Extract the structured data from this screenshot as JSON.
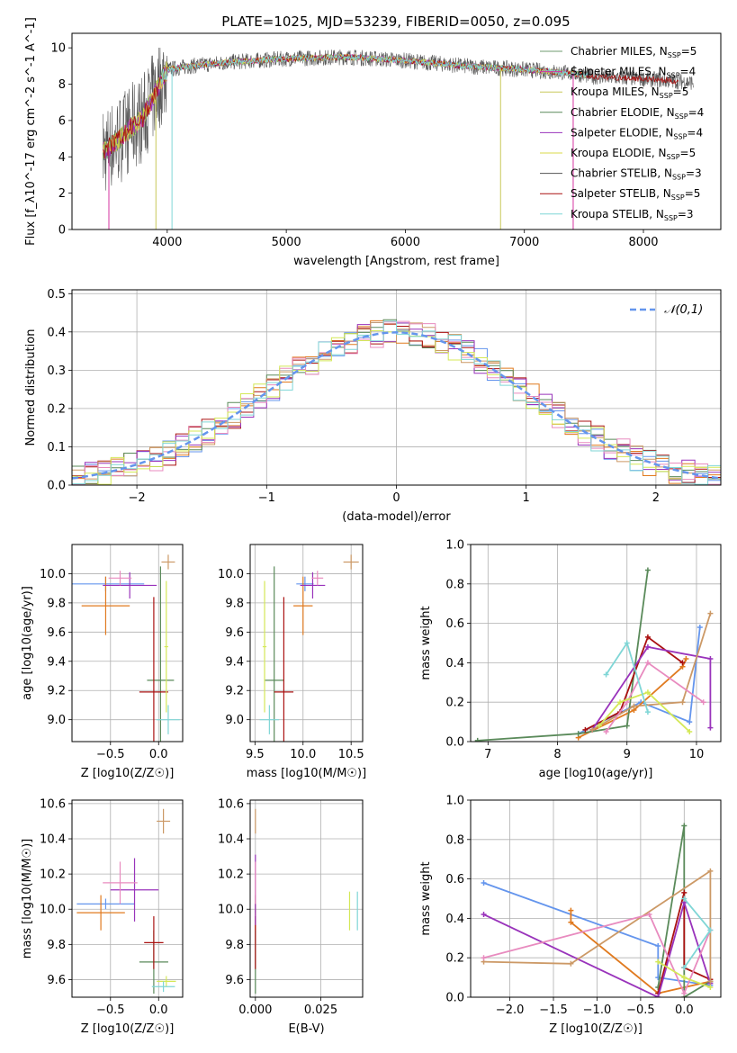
{
  "figure_title": "PLATE=1025, MJD=53239, FIBERID=0050, z=0.095",
  "colors": [
    "#6f9b6f",
    "#d633a0",
    "#c8c85a",
    "#5a8a5a",
    "#9933bb",
    "#dada4a",
    "#555555",
    "#aa1111",
    "#7fd6d6"
  ],
  "hist_colors": [
    "#6495ed",
    "#e07a1f",
    "#5a8a5a",
    "#aa1111",
    "#9933bb",
    "#cc9966",
    "#e88bbf",
    "#d4e857",
    "#7fd6d6"
  ],
  "chart_data": [
    {
      "type": "line",
      "title": "PLATE=1025, MJD=53239, FIBERID=0050, z=0.095",
      "xlabel": "wavelength [Angstrom, rest frame]",
      "ylabel": "Flux [f_λ10^-17 erg cm^-2 s^-1 A^-1]",
      "xlim": [
        3200,
        8650
      ],
      "ylim": [
        0,
        10.8
      ],
      "xticks": [
        "4000",
        "5000",
        "6000",
        "7000",
        "8000"
      ],
      "yticks": [
        "0",
        "2",
        "4",
        "6",
        "8",
        "10"
      ],
      "legend": "upper-right",
      "series": [
        {
          "name": "Chabrier MILES, N_SSP=5"
        },
        {
          "name": "Salpeter MILES, N_SSP=4"
        },
        {
          "name": "Kroupa MILES, N_SSP=5"
        },
        {
          "name": "Chabrier ELODIE, N_SSP=4"
        },
        {
          "name": "Salpeter ELODIE, N_SSP=4"
        },
        {
          "name": "Kroupa ELODIE, N_SSP=5"
        },
        {
          "name": "Chabrier STELIB, N_SSP=3"
        },
        {
          "name": "Salpeter STELIB, N_SSP=5"
        },
        {
          "name": "Kroupa STELIB, N_SSP=3"
        }
      ],
      "continuum": {
        "x": [
          3450,
          3600,
          3800,
          4000,
          4200,
          4500,
          5000,
          5500,
          6000,
          6500,
          7000,
          7400,
          7600,
          8000,
          8400
        ],
        "y": [
          4.2,
          5.0,
          6.2,
          8.8,
          9.0,
          9.2,
          9.4,
          9.5,
          9.3,
          9.0,
          8.8,
          8.6,
          8.4,
          8.3,
          8.1
        ]
      }
    },
    {
      "type": "bar",
      "xlabel": "(data-model)/error",
      "ylabel": "Normed distribution",
      "xlim": [
        -2.5,
        2.5
      ],
      "ylim": [
        0,
        0.51
      ],
      "xticks": [
        "−2",
        "−1",
        "0",
        "1",
        "2"
      ],
      "yticks": [
        "0.0",
        "0.1",
        "0.2",
        "0.3",
        "0.4",
        "0.5"
      ],
      "legend": "upper-right",
      "reference": {
        "name": "𝒩(0,1)"
      },
      "bin_width": 0.1
    },
    {
      "type": "scatter",
      "xlabel": "Z [log10(Z/Z☉)]",
      "ylabel": "age [log10(age/yr)]",
      "xlim": [
        -0.9,
        0.25
      ],
      "ylim": [
        8.85,
        10.2
      ],
      "xticks": [
        "−0.5",
        "0.0"
      ],
      "yticks": [
        "9.0",
        "9.2",
        "9.4",
        "9.6",
        "9.8",
        "10.0"
      ],
      "points": [
        {
          "x": -0.55,
          "y": 9.93,
          "ex": 0.4,
          "ey": 0.05
        },
        {
          "x": -0.55,
          "y": 9.78,
          "ex": 0.25,
          "ey": 0.2
        },
        {
          "x": 0.02,
          "y": 9.27,
          "ex": 0.14,
          "ey": 0.78
        },
        {
          "x": -0.05,
          "y": 9.19,
          "ex": 0.15,
          "ey": 0.65
        },
        {
          "x": -0.3,
          "y": 9.92,
          "ex": 0.28,
          "ey": 0.09
        },
        {
          "x": 0.1,
          "y": 10.08,
          "ex": 0.07,
          "ey": 0.05
        },
        {
          "x": -0.4,
          "y": 9.97,
          "ex": 0.12,
          "ey": 0.05
        },
        {
          "x": 0.08,
          "y": 9.5,
          "ex": 0.02,
          "ey": 0.45
        },
        {
          "x": 0.1,
          "y": 9.0,
          "ex": 0.12,
          "ey": 0.1
        }
      ]
    },
    {
      "type": "scatter",
      "xlabel": "mass [log10(M/M☉)]",
      "ylabel": "",
      "xlim": [
        9.45,
        10.62
      ],
      "ylim": [
        8.85,
        10.2
      ],
      "xticks": [
        "9.5",
        "10.0",
        "10.5"
      ],
      "yticks": [
        "9.0",
        "9.2",
        "9.4",
        "9.6",
        "9.8",
        "10.0"
      ],
      "points": [
        {
          "x": 10.02,
          "y": 9.93,
          "ex": 0.09,
          "ey": 0.05
        },
        {
          "x": 10.0,
          "y": 9.78,
          "ex": 0.1,
          "ey": 0.2
        },
        {
          "x": 9.7,
          "y": 9.27,
          "ex": 0.1,
          "ey": 0.78
        },
        {
          "x": 9.8,
          "y": 9.19,
          "ex": 0.1,
          "ey": 0.65
        },
        {
          "x": 10.1,
          "y": 9.92,
          "ex": 0.13,
          "ey": 0.09
        },
        {
          "x": 10.5,
          "y": 10.08,
          "ex": 0.08,
          "ey": 0.05
        },
        {
          "x": 10.15,
          "y": 9.97,
          "ex": 0.06,
          "ey": 0.05
        },
        {
          "x": 9.6,
          "y": 9.5,
          "ex": 0.02,
          "ey": 0.45
        },
        {
          "x": 9.65,
          "y": 9.0,
          "ex": 0.1,
          "ey": 0.1
        }
      ]
    },
    {
      "type": "line",
      "xlabel": "age [log10(age/yr)]",
      "ylabel": "mass weight",
      "xlim": [
        6.75,
        10.35
      ],
      "ylim": [
        0,
        1.0
      ],
      "xticks": [
        "7",
        "8",
        "9",
        "10"
      ],
      "yticks": [
        "0.0",
        "0.2",
        "0.4",
        "0.6",
        "0.8",
        "1.0"
      ],
      "series": [
        {
          "x": [
            8.3,
            9.2,
            9.9,
            10.05
          ],
          "y": [
            0.04,
            0.2,
            0.1,
            0.58
          ]
        },
        {
          "x": [
            8.3,
            9.1,
            9.8,
            9.85
          ],
          "y": [
            0.02,
            0.16,
            0.38,
            0.42
          ]
        },
        {
          "x": [
            6.85,
            8.3,
            9.0,
            9.3
          ],
          "y": [
            0.005,
            0.04,
            0.08,
            0.87
          ]
        },
        {
          "x": [
            8.4,
            8.9,
            9.3,
            9.8
          ],
          "y": [
            0.06,
            0.15,
            0.53,
            0.4
          ]
        },
        {
          "x": [
            8.5,
            9.3,
            10.2,
            10.2
          ],
          "y": [
            0.06,
            0.48,
            0.42,
            0.07
          ]
        },
        {
          "x": [
            8.5,
            9.1,
            9.8,
            10.2
          ],
          "y": [
            0.06,
            0.18,
            0.2,
            0.65
          ]
        },
        {
          "x": [
            8.7,
            9.0,
            9.3,
            10.1
          ],
          "y": [
            0.05,
            0.2,
            0.4,
            0.2
          ]
        },
        {
          "x": [
            8.6,
            8.9,
            9.3,
            9.9
          ],
          "y": [
            0.08,
            0.2,
            0.25,
            0.05
          ]
        },
        {
          "x": [
            8.7,
            9.0,
            9.3
          ],
          "y": [
            0.34,
            0.5,
            0.15
          ]
        }
      ]
    },
    {
      "type": "scatter",
      "xlabel": "Z [log10(Z/Z☉)]",
      "ylabel": "mass [log10(M/M☉)]",
      "xlim": [
        -0.9,
        0.25
      ],
      "ylim": [
        9.5,
        10.62
      ],
      "xticks": [
        "−0.5",
        "0.0"
      ],
      "yticks": [
        "9.6",
        "9.8",
        "10.0",
        "10.2",
        "10.4",
        "10.6"
      ],
      "points": [
        {
          "x": -0.55,
          "y": 10.03,
          "ex": 0.3,
          "ey": 0.03
        },
        {
          "x": -0.6,
          "y": 9.98,
          "ex": 0.25,
          "ey": 0.1
        },
        {
          "x": -0.05,
          "y": 9.7,
          "ex": 0.15,
          "ey": 0.18
        },
        {
          "x": -0.05,
          "y": 9.81,
          "ex": 0.1,
          "ey": 0.15
        },
        {
          "x": -0.25,
          "y": 10.11,
          "ex": 0.25,
          "ey": 0.18
        },
        {
          "x": 0.05,
          "y": 10.5,
          "ex": 0.07,
          "ey": 0.07
        },
        {
          "x": -0.4,
          "y": 10.15,
          "ex": 0.18,
          "ey": 0.12
        },
        {
          "x": 0.08,
          "y": 9.59,
          "ex": 0.1,
          "ey": 0.03
        },
        {
          "x": 0.05,
          "y": 9.56,
          "ex": 0.12,
          "ey": 0.03
        }
      ]
    },
    {
      "type": "scatter",
      "xlabel": "E(B-V)",
      "ylabel": "",
      "xlim": [
        -0.002,
        0.041
      ],
      "ylim": [
        9.5,
        10.62
      ],
      "xticks": [
        "0.000",
        "0.025"
      ],
      "yticks": [
        "9.6",
        "9.8",
        "10.0",
        "10.2",
        "10.4",
        "10.6"
      ],
      "points": [
        {
          "x": 0.0,
          "y": 10.03,
          "ex": 0.0,
          "ey": 0.05
        },
        {
          "x": 0.0,
          "y": 9.98,
          "ex": 0.0,
          "ey": 0.1
        },
        {
          "x": 0.0,
          "y": 9.7,
          "ex": 0.0,
          "ey": 0.18
        },
        {
          "x": 0.0,
          "y": 9.81,
          "ex": 0.0,
          "ey": 0.15
        },
        {
          "x": 0.0,
          "y": 10.11,
          "ex": 0.0,
          "ey": 0.2
        },
        {
          "x": 0.0,
          "y": 10.5,
          "ex": 0.0,
          "ey": 0.07
        },
        {
          "x": 0.0,
          "y": 10.15,
          "ex": 0.0,
          "ey": 0.12
        },
        {
          "x": 0.036,
          "y": 9.99,
          "ex": 0.0,
          "ey": 0.11
        },
        {
          "x": 0.039,
          "y": 9.99,
          "ex": 0.0,
          "ey": 0.11
        }
      ]
    },
    {
      "type": "line",
      "xlabel": "Z [log10(Z/Z☉)]",
      "ylabel": "mass weight",
      "xlim": [
        -2.45,
        0.42
      ],
      "ylim": [
        0,
        1.0
      ],
      "xticks": [
        "−2.0",
        "−1.5",
        "−1.0",
        "−0.5",
        "0.0"
      ],
      "yticks": [
        "0.0",
        "0.2",
        "0.4",
        "0.6",
        "0.8",
        "1.0"
      ],
      "series": [
        {
          "x": [
            -2.3,
            -0.3,
            -0.3,
            0.3
          ],
          "y": [
            0.58,
            0.26,
            0.1,
            0.06
          ]
        },
        {
          "x": [
            -1.3,
            -1.3,
            -0.3,
            0.3
          ],
          "y": [
            0.44,
            0.38,
            0.02,
            0.08
          ]
        },
        {
          "x": [
            -0.3,
            0.0,
            0.0,
            0.3
          ],
          "y": [
            0.05,
            0.87,
            0.0,
            0.08
          ]
        },
        {
          "x": [
            -0.3,
            0.0,
            0.0,
            0.3
          ],
          "y": [
            0.02,
            0.53,
            0.15,
            0.09
          ]
        },
        {
          "x": [
            -2.3,
            -0.3,
            0.0,
            0.3
          ],
          "y": [
            0.42,
            0.0,
            0.48,
            0.07
          ]
        },
        {
          "x": [
            -2.3,
            -1.3,
            0.3,
            0.3
          ],
          "y": [
            0.18,
            0.17,
            0.64,
            0.08
          ]
        },
        {
          "x": [
            -2.3,
            -0.4,
            0.0,
            0.3
          ],
          "y": [
            0.2,
            0.42,
            0.02,
            0.34
          ]
        },
        {
          "x": [
            -0.3,
            0.0,
            0.3
          ],
          "y": [
            0.18,
            0.1,
            0.05
          ]
        },
        {
          "x": [
            0.0,
            0.3,
            0.0
          ],
          "y": [
            0.5,
            0.34,
            0.15
          ]
        }
      ]
    }
  ]
}
